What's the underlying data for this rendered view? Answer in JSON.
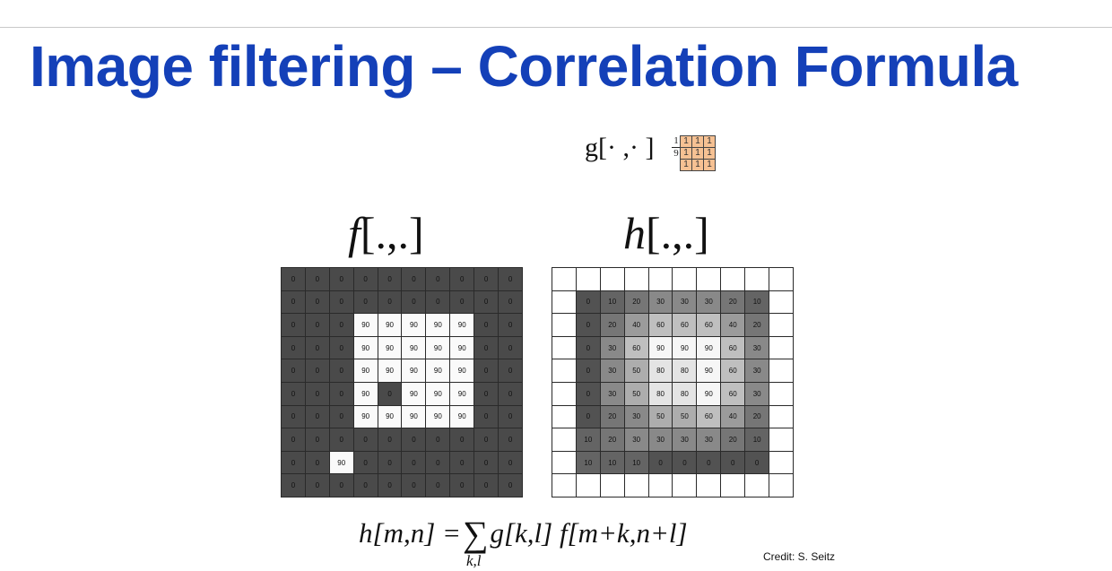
{
  "title": "Image filtering – Correlation Formula",
  "kernel": {
    "label": "g[· ,· ]",
    "frac_num": "1",
    "frac_den": "9",
    "values": [
      [
        "1",
        "1",
        "1"
      ],
      [
        "1",
        "1",
        "1"
      ],
      [
        "1",
        "1",
        "1"
      ]
    ],
    "fill_color": "#f6c193"
  },
  "input": {
    "label": "f[.,.]",
    "values": [
      [
        0,
        0,
        0,
        0,
        0,
        0,
        0,
        0,
        0,
        0
      ],
      [
        0,
        0,
        0,
        0,
        0,
        0,
        0,
        0,
        0,
        0
      ],
      [
        0,
        0,
        0,
        90,
        90,
        90,
        90,
        90,
        0,
        0
      ],
      [
        0,
        0,
        0,
        90,
        90,
        90,
        90,
        90,
        0,
        0
      ],
      [
        0,
        0,
        0,
        90,
        90,
        90,
        90,
        90,
        0,
        0
      ],
      [
        0,
        0,
        0,
        90,
        0,
        90,
        90,
        90,
        0,
        0
      ],
      [
        0,
        0,
        0,
        90,
        90,
        90,
        90,
        90,
        0,
        0
      ],
      [
        0,
        0,
        0,
        0,
        0,
        0,
        0,
        0,
        0,
        0
      ],
      [
        0,
        0,
        90,
        0,
        0,
        0,
        0,
        0,
        0,
        0
      ],
      [
        0,
        0,
        0,
        0,
        0,
        0,
        0,
        0,
        0,
        0
      ]
    ]
  },
  "output": {
    "label": "h[.,.]",
    "values": [
      [
        null,
        null,
        null,
        null,
        null,
        null,
        null,
        null,
        null,
        null
      ],
      [
        null,
        0,
        10,
        20,
        30,
        30,
        30,
        20,
        10,
        null
      ],
      [
        null,
        0,
        20,
        40,
        60,
        60,
        60,
        40,
        20,
        null
      ],
      [
        null,
        0,
        30,
        60,
        90,
        90,
        90,
        60,
        30,
        null
      ],
      [
        null,
        0,
        30,
        50,
        80,
        80,
        90,
        60,
        30,
        null
      ],
      [
        null,
        0,
        30,
        50,
        80,
        80,
        90,
        60,
        30,
        null
      ],
      [
        null,
        0,
        20,
        30,
        50,
        50,
        60,
        40,
        20,
        null
      ],
      [
        null,
        10,
        20,
        30,
        30,
        30,
        30,
        20,
        10,
        null
      ],
      [
        null,
        10,
        10,
        10,
        0,
        0,
        0,
        0,
        0,
        null
      ],
      [
        null,
        null,
        null,
        null,
        null,
        null,
        null,
        null,
        null,
        null
      ]
    ]
  },
  "formula": {
    "lhs": "h[m,n] =",
    "sum_symbol": "∑",
    "sum_index": "k,l",
    "rhs": "g[k,l] f[m+k,n+l]"
  },
  "credit": "Credit: S. Seitz"
}
